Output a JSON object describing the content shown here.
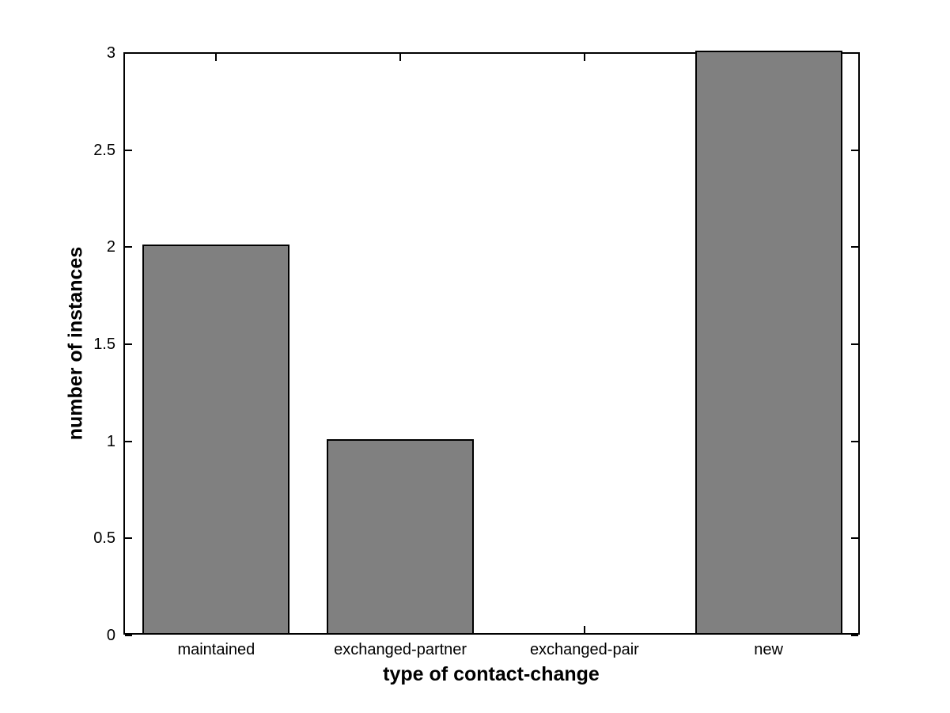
{
  "chart_data": {
    "type": "bar",
    "title": "",
    "categories": [
      "maintained",
      "exchanged-partner",
      "exchanged-pair",
      "new"
    ],
    "values": [
      2,
      1,
      0,
      3
    ],
    "xlabel": "type of contact-change",
    "ylabel": "number of instances",
    "ytick_values": [
      0,
      0.5,
      1,
      1.5,
      2,
      2.5,
      3
    ],
    "ytick_labels": [
      "0",
      "0.5",
      "1",
      "1.5",
      "2",
      "2.5",
      "3"
    ],
    "ylim": [
      0,
      3
    ],
    "xlim": [
      0.5,
      4.5
    ],
    "bar_width_units": 0.8,
    "grid": false,
    "legend_position": "none",
    "colors": {
      "bar_fill": "#808080",
      "bar_edge": "#000000",
      "axis": "#000000",
      "background": "#ffffff",
      "text": "#000000"
    }
  }
}
